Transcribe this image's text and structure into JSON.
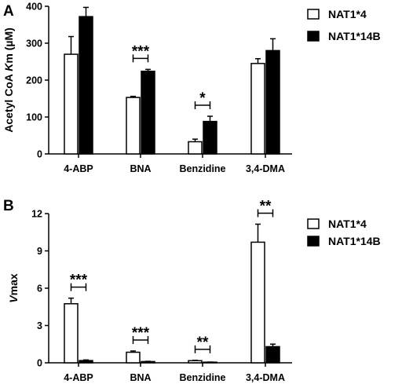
{
  "chart_data": [
    {
      "type": "bar",
      "panel_label": "A",
      "categories": [
        "4-ABP",
        "BNA",
        "Benzidine",
        "3,4-DMA"
      ],
      "ylabel_prefix": "Acetyl CoA ",
      "ylabel_italic": "K",
      "ylabel_suffix": "m (µM)",
      "ylim": [
        0,
        400
      ],
      "yticks": [
        "0",
        "100",
        "200",
        "300",
        "400"
      ],
      "series": [
        {
          "name": "NAT1*4",
          "color": "#ffffff",
          "values": [
            270,
            153,
            33,
            245
          ],
          "errors": [
            48,
            3,
            7,
            13
          ]
        },
        {
          "name": "NAT1*14B",
          "color": "#000000",
          "values": [
            372,
            224,
            88,
            280
          ],
          "errors": [
            25,
            5,
            14,
            32
          ]
        }
      ],
      "significance": [
        {
          "category": 1,
          "stars": "***"
        },
        {
          "category": 2,
          "stars": "*"
        }
      ],
      "legend": "top-right"
    },
    {
      "type": "bar",
      "panel_label": "B",
      "categories": [
        "4-ABP",
        "BNA",
        "Benzidine",
        "3,4-DMA"
      ],
      "ylabel_prefix": "",
      "ylabel_italic": "V",
      "ylabel_suffix": "max",
      "ylim": [
        0,
        12
      ],
      "yticks": [
        "0",
        "3",
        "6",
        "9",
        "12"
      ],
      "series": [
        {
          "name": "NAT1*4",
          "color": "#ffffff",
          "values": [
            4.75,
            0.85,
            0.17,
            9.7
          ],
          "errors": [
            0.45,
            0.1,
            0.03,
            1.45
          ]
        },
        {
          "name": "NAT1*14B",
          "color": "#000000",
          "values": [
            0.18,
            0.1,
            0.05,
            1.3
          ],
          "errors": [
            0.05,
            0.02,
            0.01,
            0.2
          ]
        }
      ],
      "significance": [
        {
          "category": 0,
          "stars": "***"
        },
        {
          "category": 1,
          "stars": "***"
        },
        {
          "category": 2,
          "stars": "**"
        },
        {
          "category": 3,
          "stars": "**"
        }
      ],
      "legend": "top-right"
    }
  ]
}
